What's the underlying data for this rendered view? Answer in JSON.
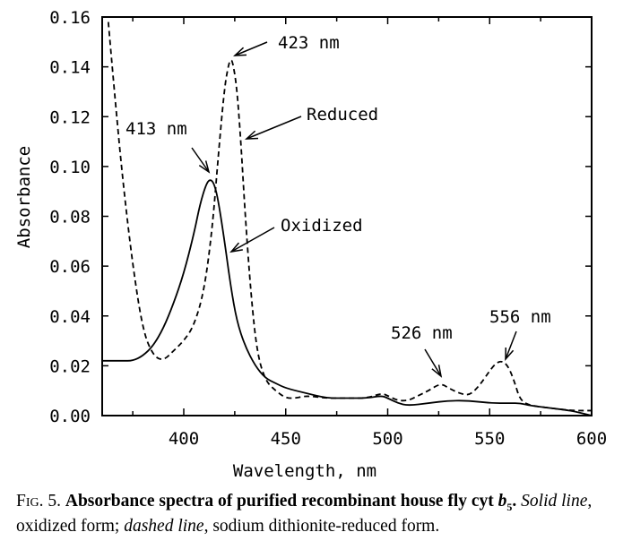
{
  "chart_data": {
    "type": "line",
    "title": "",
    "xlabel": "Wavelength, nm",
    "ylabel": "Absorbance",
    "xlim": [
      360,
      600
    ],
    "ylim": [
      0,
      0.16
    ],
    "xticks": [
      400,
      450,
      500,
      550,
      600
    ],
    "xtick_labels": [
      "400",
      "450",
      "500",
      "550",
      "600"
    ],
    "yticks": [
      0,
      0.02,
      0.04,
      0.06,
      0.08,
      0.1,
      0.12,
      0.14,
      0.16
    ],
    "ytick_labels": [
      "0.00",
      "0.02",
      "0.04",
      "0.06",
      "0.08",
      "0.10",
      "0.12",
      "0.14",
      "0.16"
    ],
    "grid": false,
    "series": [
      {
        "name": "Oxidized",
        "style": "solid",
        "x": [
          360,
          370,
          375,
          380,
          385,
          390,
          395,
          400,
          405,
          408,
          411,
          413,
          415,
          417,
          420,
          423,
          426,
          430,
          435,
          440,
          445,
          450,
          460,
          470,
          480,
          490,
          497,
          500,
          505,
          510,
          520,
          530,
          540,
          550,
          560,
          565,
          570,
          580,
          590,
          600
        ],
        "y": [
          0.022,
          0.022,
          0.022,
          0.024,
          0.028,
          0.035,
          0.045,
          0.057,
          0.073,
          0.085,
          0.093,
          0.095,
          0.093,
          0.086,
          0.07,
          0.052,
          0.038,
          0.028,
          0.02,
          0.015,
          0.013,
          0.011,
          0.009,
          0.007,
          0.007,
          0.007,
          0.008,
          0.007,
          0.005,
          0.004,
          0.005,
          0.006,
          0.006,
          0.005,
          0.005,
          0.005,
          0.004,
          0.003,
          0.002,
          0.0
        ]
      },
      {
        "name": "Reduced",
        "style": "dashed",
        "x": [
          363,
          366,
          370,
          375,
          380,
          385,
          390,
          395,
          400,
          405,
          410,
          414,
          417,
          420,
          422,
          423,
          424,
          426,
          428,
          430,
          433,
          436,
          440,
          445,
          450,
          455,
          460,
          470,
          480,
          490,
          497,
          500,
          505,
          510,
          515,
          520,
          526,
          530,
          535,
          540,
          545,
          550,
          553,
          556,
          559,
          562,
          565,
          570,
          580,
          590,
          600
        ],
        "y": [
          0.158,
          0.13,
          0.095,
          0.06,
          0.034,
          0.024,
          0.022,
          0.026,
          0.03,
          0.036,
          0.05,
          0.075,
          0.105,
          0.132,
          0.141,
          0.143,
          0.142,
          0.132,
          0.11,
          0.082,
          0.048,
          0.025,
          0.014,
          0.01,
          0.007,
          0.007,
          0.008,
          0.007,
          0.007,
          0.007,
          0.009,
          0.008,
          0.006,
          0.006,
          0.008,
          0.01,
          0.013,
          0.011,
          0.009,
          0.008,
          0.012,
          0.018,
          0.021,
          0.022,
          0.02,
          0.014,
          0.006,
          0.004,
          0.003,
          0.002,
          0.002
        ]
      }
    ],
    "annotations": [
      {
        "text": "423 nm",
        "x": 423,
        "y": 0.143
      },
      {
        "text": "Reduced",
        "x": 428,
        "y": 0.11
      },
      {
        "text": "413 nm",
        "x": 413,
        "y": 0.095
      },
      {
        "text": "Oxidized",
        "x": 423,
        "y": 0.083
      },
      {
        "text": "526 nm",
        "x": 526,
        "y": 0.014
      },
      {
        "text": "556 nm",
        "x": 556,
        "y": 0.023
      }
    ],
    "legend": "none"
  },
  "caption": {
    "fig_label": "Fig. 5.",
    "bold_title": "Absorbance spectra of purified recombinant house fly cyt ",
    "bold_b": "b",
    "bold_sub": "5",
    "bold_period": ".",
    "solid_line": "Solid line",
    "solid_desc": ", oxidized form; ",
    "dashed_line": "dashed line",
    "dashed_desc": ", sodium dithionite-reduced form."
  }
}
